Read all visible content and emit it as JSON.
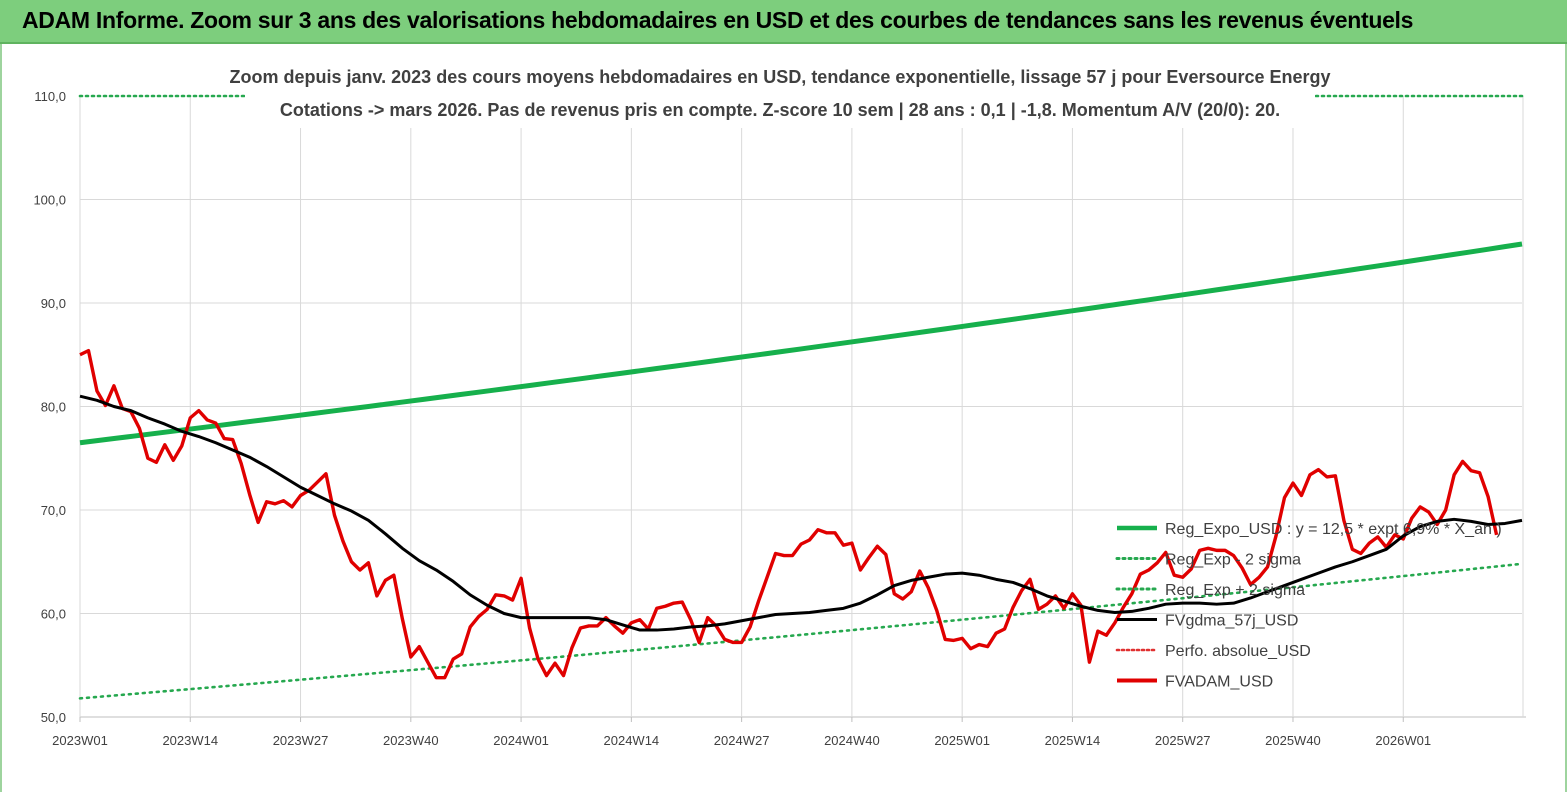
{
  "banner": {
    "title": "ADAM Informe. Zoom sur 3 ans des valorisations hebdomadaires en USD et des courbes de tendances sans les revenus éventuels"
  },
  "colors": {
    "banner": "#7dce7d",
    "reg_expo": "#16b04c",
    "sigma": "#26a84f",
    "perfo": "#e03030",
    "fvgdma": "#000000",
    "fvadam": "#e00000",
    "grid": "#d9d9d9"
  },
  "chart_data": {
    "type": "line",
    "title": "Zoom depuis janv. 2023 des cours moyens hebdomadaires en USD, tendance exponentielle, lissage 57 j pour Eversource Energy",
    "subtitle": "Cotations -> mars 2026. Pas de revenus pris en compte. Z-score 10 sem | 28 ans : 0,1 | -1,8. Momentum A/V (20/0): 20.",
    "x_tick_labels": [
      "2023W01",
      "2023W14",
      "2023W27",
      "2023W40",
      "2024W01",
      "2024W14",
      "2024W27",
      "2024W40",
      "2025W01",
      "2025W14",
      "2025W27",
      "2025W40",
      "2026W01"
    ],
    "x_range": [
      0,
      170
    ],
    "ylim": [
      50,
      110
    ],
    "y_ticks": [
      50,
      60,
      70,
      80,
      90,
      100,
      110
    ],
    "y_tick_labels": [
      "50,0",
      "60,0",
      "70,0",
      "80,0",
      "90,0",
      "100,0",
      "110,0"
    ],
    "grid": true,
    "legend_position": "right",
    "legend": [
      "Reg_Expo_USD : y = 12,5 * expt 6,9% * X_an )",
      "Reg_Exp - 2 sigma",
      "Reg_Exp + 2 sigma",
      "FVgdma_57j_USD",
      "Perfo. absolue_USD",
      "FVADAM_USD"
    ],
    "series": [
      {
        "name": "Reg_Expo_USD : y = 12,5 * expt 6,9% * X_an )",
        "style": "solid",
        "start": 76.5,
        "end": 95.7
      },
      {
        "name": "Reg_Exp - 2 sigma",
        "style": "dotted",
        "start": 51.8,
        "end": 64.8
      },
      {
        "name": "Reg_Exp + 2 sigma",
        "style": "dotted",
        "value": 110.0
      },
      {
        "name": "FVgdma_57j_USD",
        "style": "solid",
        "points": [
          [
            0,
            81
          ],
          [
            2,
            80.6
          ],
          [
            4,
            80
          ],
          [
            6,
            79.6
          ],
          [
            8,
            78.9
          ],
          [
            10,
            78.3
          ],
          [
            12,
            77.6
          ],
          [
            14,
            77.1
          ],
          [
            16,
            76.5
          ],
          [
            18,
            75.8
          ],
          [
            20,
            75.1
          ],
          [
            22,
            74.2
          ],
          [
            24,
            73.2
          ],
          [
            26,
            72.2
          ],
          [
            28,
            71.4
          ],
          [
            30,
            70.6
          ],
          [
            32,
            69.9
          ],
          [
            34,
            69
          ],
          [
            36,
            67.7
          ],
          [
            38,
            66.3
          ],
          [
            40,
            65.1
          ],
          [
            42,
            64.2
          ],
          [
            44,
            63.1
          ],
          [
            46,
            61.8
          ],
          [
            48,
            60.8
          ],
          [
            50,
            60
          ],
          [
            52,
            59.6
          ],
          [
            54,
            59.6
          ],
          [
            56,
            59.6
          ],
          [
            58,
            59.6
          ],
          [
            60,
            59.6
          ],
          [
            62,
            59.4
          ],
          [
            64,
            58.9
          ],
          [
            66,
            58.4
          ],
          [
            68,
            58.4
          ],
          [
            70,
            58.5
          ],
          [
            72,
            58.7
          ],
          [
            74,
            58.8
          ],
          [
            76,
            59
          ],
          [
            78,
            59.3
          ],
          [
            80,
            59.6
          ],
          [
            82,
            59.9
          ],
          [
            84,
            60
          ],
          [
            86,
            60.1
          ],
          [
            88,
            60.3
          ],
          [
            90,
            60.5
          ],
          [
            92,
            61
          ],
          [
            94,
            61.8
          ],
          [
            96,
            62.7
          ],
          [
            98,
            63.2
          ],
          [
            100,
            63.5
          ],
          [
            102,
            63.8
          ],
          [
            104,
            63.9
          ],
          [
            106,
            63.7
          ],
          [
            108,
            63.3
          ],
          [
            110,
            63
          ],
          [
            112,
            62.4
          ],
          [
            114,
            61.7
          ],
          [
            116,
            61.2
          ],
          [
            118,
            60.7
          ],
          [
            120,
            60.3
          ],
          [
            122,
            60.1
          ],
          [
            124,
            60.2
          ],
          [
            126,
            60.5
          ],
          [
            128,
            60.9
          ],
          [
            130,
            61
          ],
          [
            132,
            61
          ],
          [
            134,
            60.9
          ],
          [
            136,
            61
          ],
          [
            138,
            61.5
          ],
          [
            140,
            62.1
          ],
          [
            142,
            62.7
          ],
          [
            144,
            63.3
          ],
          [
            146,
            63.9
          ],
          [
            148,
            64.5
          ],
          [
            150,
            65
          ],
          [
            152,
            65.6
          ],
          [
            154,
            66.2
          ],
          [
            156,
            67.5
          ],
          [
            158,
            68.4
          ],
          [
            160,
            68.9
          ],
          [
            162,
            69.1
          ],
          [
            164,
            68.9
          ],
          [
            166,
            68.6
          ],
          [
            168,
            68.7
          ],
          [
            170,
            69
          ]
        ]
      },
      {
        "name": "Perfo. absolue_USD",
        "style": "dotted",
        "points": []
      },
      {
        "name": "FVADAM_USD",
        "style": "solid",
        "points": [
          [
            0,
            85
          ],
          [
            1,
            85.4
          ],
          [
            2,
            81.5
          ],
          [
            3,
            80.1
          ],
          [
            4,
            82
          ],
          [
            5,
            79.8
          ],
          [
            6,
            79.5
          ],
          [
            7,
            77.9
          ],
          [
            8,
            75
          ],
          [
            9,
            74.6
          ],
          [
            10,
            76.3
          ],
          [
            11,
            74.8
          ],
          [
            12,
            76.2
          ],
          [
            13,
            78.9
          ],
          [
            14,
            79.6
          ],
          [
            15,
            78.7
          ],
          [
            16,
            78.4
          ],
          [
            17,
            76.9
          ],
          [
            18,
            76.8
          ],
          [
            19,
            74.5
          ],
          [
            20,
            71.5
          ],
          [
            21,
            68.8
          ],
          [
            22,
            70.8
          ],
          [
            23,
            70.6
          ],
          [
            24,
            70.9
          ],
          [
            25,
            70.3
          ],
          [
            26,
            71.4
          ],
          [
            27,
            71.9
          ],
          [
            28,
            72.7
          ],
          [
            29,
            73.5
          ],
          [
            30,
            69.5
          ],
          [
            31,
            67
          ],
          [
            32,
            65
          ],
          [
            33,
            64.2
          ],
          [
            34,
            64.9
          ],
          [
            35,
            61.7
          ],
          [
            36,
            63.2
          ],
          [
            37,
            63.7
          ],
          [
            38,
            59.5
          ],
          [
            39,
            55.8
          ],
          [
            40,
            56.8
          ],
          [
            41,
            55.3
          ],
          [
            42,
            53.8
          ],
          [
            43,
            53.8
          ],
          [
            44,
            55.6
          ],
          [
            45,
            56.1
          ],
          [
            46,
            58.7
          ],
          [
            47,
            59.7
          ],
          [
            48,
            60.4
          ],
          [
            49,
            61.8
          ],
          [
            50,
            61.7
          ],
          [
            51,
            61.3
          ],
          [
            52,
            63.4
          ],
          [
            53,
            58.6
          ],
          [
            54,
            55.6
          ],
          [
            55,
            54
          ],
          [
            56,
            55.2
          ],
          [
            57,
            54
          ],
          [
            58,
            56.7
          ],
          [
            59,
            58.6
          ],
          [
            60,
            58.8
          ],
          [
            61,
            58.8
          ],
          [
            62,
            59.6
          ],
          [
            63,
            58.8
          ],
          [
            64,
            58.1
          ],
          [
            65,
            59.1
          ],
          [
            66,
            59.4
          ],
          [
            67,
            58.5
          ],
          [
            68,
            60.5
          ],
          [
            69,
            60.7
          ],
          [
            70,
            61
          ],
          [
            71,
            61.1
          ],
          [
            72,
            59.4
          ],
          [
            73,
            57.2
          ],
          [
            74,
            59.6
          ],
          [
            75,
            58.8
          ],
          [
            76,
            57.5
          ],
          [
            77,
            57.2
          ],
          [
            78,
            57.2
          ],
          [
            79,
            58.7
          ],
          [
            80,
            61.2
          ],
          [
            81,
            63.5
          ],
          [
            82,
            65.8
          ],
          [
            83,
            65.6
          ],
          [
            84,
            65.6
          ],
          [
            85,
            66.7
          ],
          [
            86,
            67.1
          ],
          [
            87,
            68.1
          ],
          [
            88,
            67.8
          ],
          [
            89,
            67.8
          ],
          [
            90,
            66.6
          ],
          [
            91,
            66.8
          ],
          [
            92,
            64.2
          ],
          [
            93,
            65.4
          ],
          [
            94,
            66.5
          ],
          [
            95,
            65.7
          ],
          [
            96,
            61.9
          ],
          [
            97,
            61.4
          ],
          [
            98,
            62.1
          ],
          [
            99,
            64.1
          ],
          [
            100,
            62.5
          ],
          [
            101,
            60.3
          ],
          [
            102,
            57.5
          ],
          [
            103,
            57.4
          ],
          [
            104,
            57.6
          ],
          [
            105,
            56.6
          ],
          [
            106,
            57
          ],
          [
            107,
            56.8
          ],
          [
            108,
            58.1
          ],
          [
            109,
            58.5
          ],
          [
            110,
            60.6
          ],
          [
            111,
            62.2
          ],
          [
            112,
            63.3
          ],
          [
            113,
            60.4
          ],
          [
            114,
            60.9
          ],
          [
            115,
            61.7
          ],
          [
            116,
            60.5
          ],
          [
            117,
            61.9
          ],
          [
            118,
            60.8
          ],
          [
            119,
            55.3
          ],
          [
            120,
            58.3
          ],
          [
            121,
            57.9
          ],
          [
            122,
            59.1
          ],
          [
            123,
            60.6
          ],
          [
            124,
            61.9
          ],
          [
            125,
            63.8
          ],
          [
            126,
            64.2
          ],
          [
            127,
            64.9
          ],
          [
            128,
            65.9
          ],
          [
            129,
            63.7
          ],
          [
            130,
            63.5
          ],
          [
            131,
            64.3
          ],
          [
            132,
            66.1
          ],
          [
            133,
            66.3
          ],
          [
            134,
            66.1
          ],
          [
            135,
            66.1
          ],
          [
            136,
            65.6
          ],
          [
            137,
            64.4
          ],
          [
            138,
            62.8
          ],
          [
            139,
            63.5
          ],
          [
            140,
            64.5
          ],
          [
            141,
            67.5
          ],
          [
            142,
            71.2
          ],
          [
            143,
            72.6
          ],
          [
            144,
            71.4
          ],
          [
            145,
            73.4
          ],
          [
            146,
            73.9
          ],
          [
            147,
            73.2
          ],
          [
            148,
            73.3
          ],
          [
            149,
            69
          ],
          [
            150,
            66.2
          ],
          [
            151,
            65.8
          ],
          [
            152,
            66.8
          ],
          [
            153,
            67.4
          ],
          [
            154,
            66.4
          ],
          [
            155,
            67.6
          ],
          [
            156,
            67.2
          ],
          [
            157,
            69.2
          ],
          [
            158,
            70.3
          ],
          [
            159,
            69.8
          ],
          [
            160,
            68.6
          ],
          [
            161,
            70
          ],
          [
            162,
            73.4
          ],
          [
            163,
            74.7
          ],
          [
            164,
            73.8
          ],
          [
            165,
            73.6
          ],
          [
            166,
            71.3
          ],
          [
            167,
            67.6
          ]
        ]
      }
    ]
  }
}
